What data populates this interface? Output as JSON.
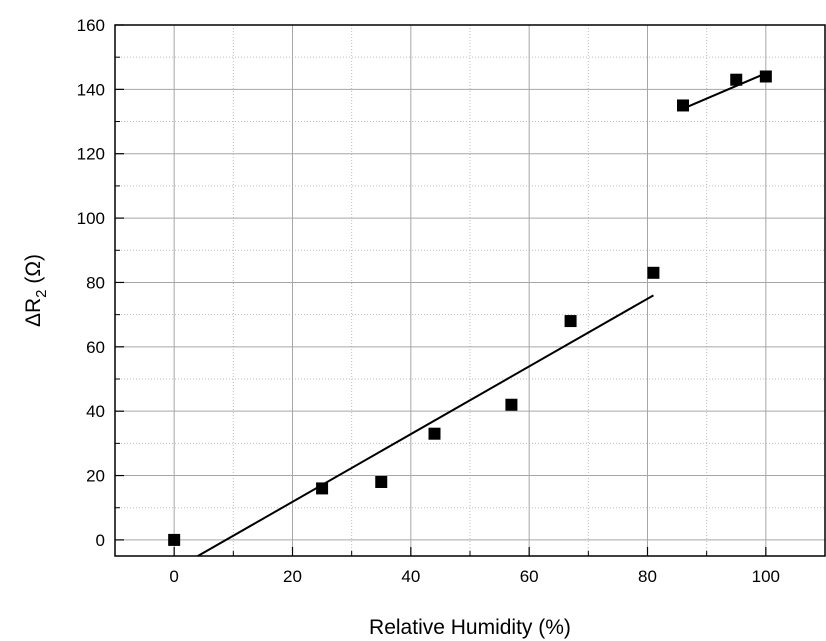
{
  "chart_data": {
    "type": "scatter",
    "title": "",
    "xlabel": "Relative Humidity (%)",
    "ylabel": {
      "prefix": "ΔR",
      "subscript": "2",
      "suffix": " (Ω)"
    },
    "xlim": [
      -10,
      110
    ],
    "ylim": [
      -5,
      160
    ],
    "xticks": [
      0,
      20,
      40,
      60,
      80,
      100
    ],
    "yticks": [
      0,
      20,
      40,
      60,
      80,
      100,
      120,
      140,
      160
    ],
    "grid": true,
    "series": [
      {
        "marker": "square",
        "color": "#000000",
        "points": [
          {
            "x": 0,
            "y": 0
          },
          {
            "x": 25,
            "y": 16
          },
          {
            "x": 35,
            "y": 18
          },
          {
            "x": 44,
            "y": 33
          },
          {
            "x": 57,
            "y": 42
          },
          {
            "x": 67,
            "y": 68
          },
          {
            "x": 81,
            "y": 83
          },
          {
            "x": 86,
            "y": 135
          },
          {
            "x": 95,
            "y": 143
          },
          {
            "x": 100,
            "y": 144
          }
        ]
      }
    ],
    "fit_lines": [
      {
        "x": [
          4,
          81
        ],
        "y": [
          -5,
          76
        ],
        "color": "#000000"
      },
      {
        "x": [
          86,
          100
        ],
        "y": [
          134,
          145
        ],
        "color": "#000000"
      }
    ]
  }
}
